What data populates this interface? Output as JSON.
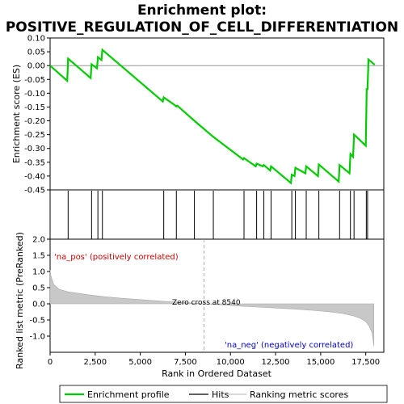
{
  "chart_data": {
    "type": "line",
    "title_line1": "Enrichment plot:",
    "title_line2": "POSITIVE_REGULATION_OF_CELL_DIFFERENTIATION",
    "es_panel": {
      "ylabel": "Enrichment score (ES)",
      "ylim": [
        -0.45,
        0.1
      ],
      "yticks": [
        "0.10",
        "0.05",
        "0.00",
        "-0.05",
        "-0.10",
        "-0.15",
        "-0.20",
        "-0.25",
        "-0.30",
        "-0.35",
        "-0.40",
        "-0.45"
      ],
      "ytick_values": [
        0.1,
        0.05,
        0.0,
        -0.05,
        -0.1,
        -0.15,
        -0.2,
        -0.25,
        -0.3,
        -0.35,
        -0.4,
        -0.45
      ],
      "series_color": "#00cc00",
      "points": [
        [
          0,
          0.0
        ],
        [
          950,
          -0.055
        ],
        [
          1000,
          0.025
        ],
        [
          2250,
          -0.045
        ],
        [
          2300,
          0.005
        ],
        [
          2600,
          -0.01
        ],
        [
          2650,
          0.03
        ],
        [
          2850,
          0.02
        ],
        [
          2900,
          0.057
        ],
        [
          6250,
          -0.13
        ],
        [
          6300,
          -0.115
        ],
        [
          6950,
          -0.145
        ],
        [
          7000,
          -0.148
        ],
        [
          7050,
          -0.145
        ],
        [
          8000,
          -0.2
        ],
        [
          9050,
          -0.258
        ],
        [
          10700,
          -0.34
        ],
        [
          10750,
          -0.335
        ],
        [
          11400,
          -0.365
        ],
        [
          11450,
          -0.355
        ],
        [
          11800,
          -0.365
        ],
        [
          11850,
          -0.36
        ],
        [
          12200,
          -0.38
        ],
        [
          12250,
          -0.365
        ],
        [
          13350,
          -0.425
        ],
        [
          13400,
          -0.395
        ],
        [
          13550,
          -0.4
        ],
        [
          13600,
          -0.37
        ],
        [
          14150,
          -0.39
        ],
        [
          14200,
          -0.365
        ],
        [
          14850,
          -0.4
        ],
        [
          14900,
          -0.358
        ],
        [
          16000,
          -0.42
        ],
        [
          16050,
          -0.36
        ],
        [
          16600,
          -0.39
        ],
        [
          16650,
          -0.32
        ],
        [
          16800,
          -0.33
        ],
        [
          16850,
          -0.25
        ],
        [
          17500,
          -0.29
        ],
        [
          17530,
          -0.185
        ],
        [
          17550,
          -0.085
        ],
        [
          17600,
          -0.085
        ],
        [
          17650,
          0.022
        ],
        [
          18000,
          0.003
        ]
      ],
      "hits": [
        1000,
        2300,
        2650,
        2900,
        6300,
        7000,
        8000,
        9050,
        10750,
        11450,
        11850,
        12250,
        13400,
        13600,
        14200,
        14900,
        16050,
        16650,
        16850,
        17530,
        17600
      ]
    },
    "rank_panel": {
      "ylabel": "Ranked list metric (PreRanked)",
      "ylim": [
        -1.5,
        2.0
      ],
      "yticks": [
        "2.0",
        "1.5",
        "1.0",
        "0.5",
        "0.0",
        "-0.5",
        "-1.0"
      ],
      "ytick_values": [
        2.0,
        1.5,
        1.0,
        0.5,
        0.0,
        -0.5,
        -1.0
      ],
      "xlabel": "Rank in Ordered Dataset",
      "xlim": [
        0,
        18500
      ],
      "xticks": [
        "0",
        "2,500",
        "5,000",
        "7,500",
        "10,000",
        "12,500",
        "15,000",
        "17,500"
      ],
      "xtick_values": [
        0,
        2500,
        5000,
        7500,
        10000,
        12500,
        15000,
        17500
      ],
      "metric_curve": [
        [
          0,
          1.05
        ],
        [
          50,
          0.85
        ],
        [
          200,
          0.6
        ],
        [
          500,
          0.45
        ],
        [
          1000,
          0.37
        ],
        [
          2000,
          0.29
        ],
        [
          3000,
          0.22
        ],
        [
          4000,
          0.17
        ],
        [
          5000,
          0.13
        ],
        [
          6000,
          0.09
        ],
        [
          7000,
          0.05
        ],
        [
          8000,
          0.02
        ],
        [
          8540,
          0.0
        ],
        [
          9500,
          -0.03
        ],
        [
          10500,
          -0.07
        ],
        [
          11500,
          -0.1
        ],
        [
          12500,
          -0.13
        ],
        [
          13500,
          -0.16
        ],
        [
          14500,
          -0.2
        ],
        [
          15500,
          -0.25
        ],
        [
          16200,
          -0.3
        ],
        [
          16800,
          -0.37
        ],
        [
          17200,
          -0.45
        ],
        [
          17500,
          -0.55
        ],
        [
          17700,
          -0.7
        ],
        [
          17850,
          -0.9
        ],
        [
          17950,
          -1.3
        ]
      ],
      "zero_cross_label": "Zero cross at 8540",
      "zero_cross_value": 8540,
      "pos_label": "'na_pos' (positively correlated)",
      "neg_label": "'na_neg' (negatively correlated)",
      "pos_color": "#cc0000",
      "neg_color": "#0000cc"
    },
    "colorbar": {
      "max_rank": 17950,
      "segments": [
        {
          "start": 0,
          "end": 450,
          "color": "#ee0000"
        },
        {
          "start": 450,
          "end": 3100,
          "color": "#f44a4a"
        },
        {
          "start": 3100,
          "end": 4500,
          "color": "#f26d6d"
        },
        {
          "start": 4500,
          "end": 6400,
          "color": "#f59393"
        },
        {
          "start": 6400,
          "end": 8540,
          "color": "#f6bde0"
        },
        {
          "start": 8540,
          "end": 10700,
          "color": "#d8d8f8"
        },
        {
          "start": 10700,
          "end": 12700,
          "color": "#babaf0"
        },
        {
          "start": 12700,
          "end": 14100,
          "color": "#8d8de8"
        },
        {
          "start": 14100,
          "end": 16900,
          "color": "#5b5bdc"
        },
        {
          "start": 16900,
          "end": 17950,
          "color": "#1818c8"
        }
      ]
    },
    "legend": [
      {
        "label": "Enrichment profile",
        "color": "#00cc00",
        "kind": "line"
      },
      {
        "label": "Hits",
        "color": "#000000",
        "kind": "line"
      },
      {
        "label": "Ranking metric scores",
        "color": "#c0c0c0",
        "kind": "line"
      }
    ]
  }
}
